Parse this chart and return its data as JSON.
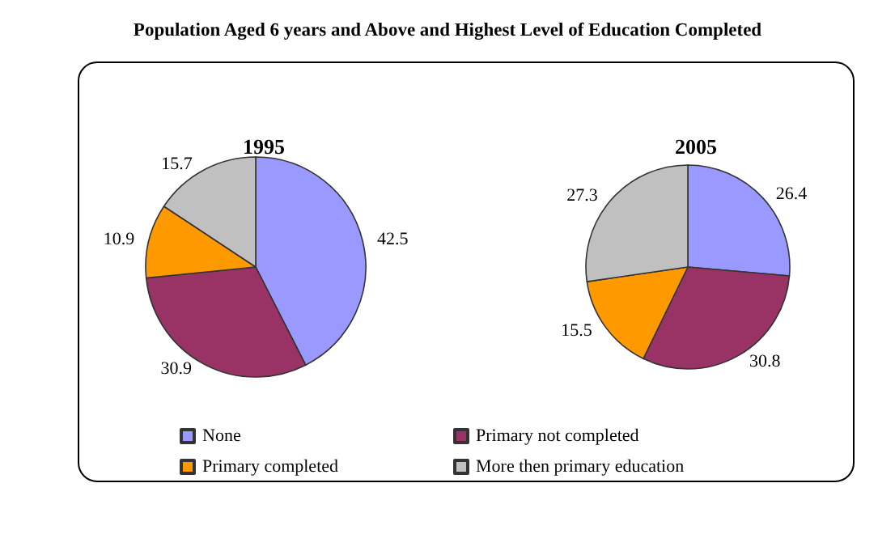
{
  "chart_data": {
    "type": "pie",
    "title": "Population Aged 6 years and Above and Highest Level of Education Completed",
    "categories": [
      "None",
      "Primary not completed",
      "Primary completed",
      "More then primary education"
    ],
    "colors": [
      "#9999ff",
      "#993366",
      "#ff9900",
      "#c0c0c0"
    ],
    "data_labels": true,
    "legend": "bottom",
    "series": [
      {
        "name": "1995",
        "values": [
          42.5,
          30.9,
          10.9,
          15.7
        ]
      },
      {
        "name": "2005",
        "values": [
          26.4,
          30.8,
          15.5,
          27.3
        ]
      }
    ]
  }
}
